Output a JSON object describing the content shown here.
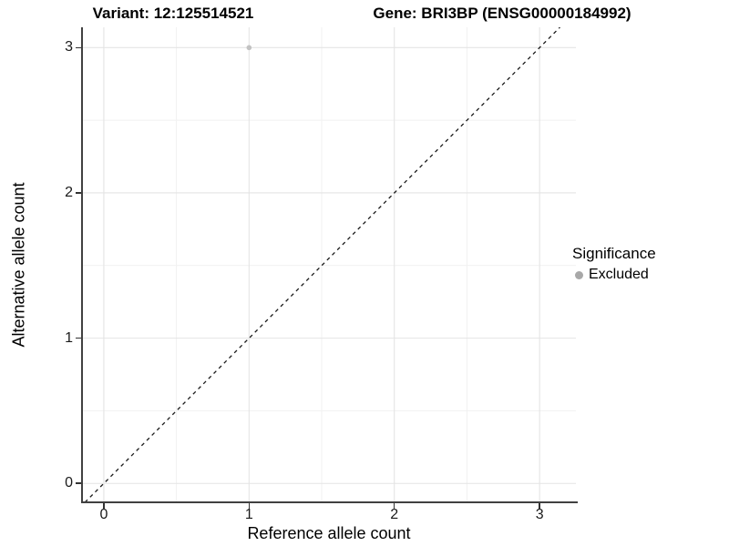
{
  "chart_data": {
    "type": "scatter",
    "title_left": "Variant: 12:125514521",
    "title_right": "Gene: BRI3BP (ENSG00000184992)",
    "xlabel": "Reference allele count",
    "ylabel": "Alternative allele count",
    "xlim": [
      -0.15,
      3.25
    ],
    "ylim": [
      -0.13,
      3.14
    ],
    "x_ticks": [
      0,
      1,
      2,
      3
    ],
    "y_ticks": [
      0,
      1,
      2,
      3
    ],
    "x_minor_ticks": [
      0.5,
      1.5,
      2.5
    ],
    "y_minor_ticks": [
      0.5,
      1.5,
      2.5
    ],
    "grid": true,
    "legend_position": "right",
    "series": [
      {
        "name": "Excluded",
        "color": "#c2c2c2",
        "point_radius": 2.8,
        "points": [
          {
            "x": 1,
            "y": 3
          }
        ]
      }
    ],
    "reference_line": {
      "type": "identity",
      "slope": 1,
      "intercept": 0,
      "style": "dashed",
      "color": "#1a1a1a"
    },
    "legend": {
      "title": "Significance",
      "entries": [
        {
          "label": "Excluded",
          "color": "#a8a8a8"
        }
      ]
    }
  },
  "colors": {
    "background": "#ffffff",
    "grid_major": "#e4e4e4",
    "grid_minor": "#f1f1f1",
    "axis_line": "#404040",
    "tick_mark": "#333333",
    "text": "#000000"
  }
}
